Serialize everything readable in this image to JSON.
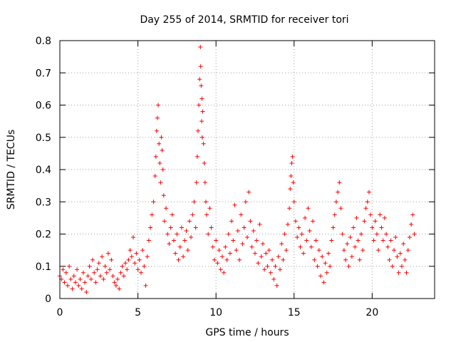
{
  "chart_data": {
    "type": "scatter",
    "title": "Day 255 of 2014, SRMTID for receiver tori",
    "xlabel": "GPS time / hours",
    "ylabel": "SRMTID / TECUs",
    "xlim": [
      0,
      24
    ],
    "ylim": [
      0,
      0.8
    ],
    "xticks": [
      0,
      5,
      10,
      15,
      20
    ],
    "yticks": [
      0,
      0.1,
      0.2,
      0.3,
      0.4,
      0.5,
      0.6,
      0.7,
      0.8
    ],
    "xtick_labels": [
      "0",
      "5",
      "10",
      "15",
      "20"
    ],
    "ytick_labels": [
      "0",
      "0.1",
      "0.2",
      "0.3",
      "0.4",
      "0.5",
      "0.6",
      "0.7",
      "0.8"
    ],
    "grid": true,
    "marker": "+",
    "color": "#ff0000",
    "series": [
      {
        "name": "SRMTID",
        "points": [
          [
            0.0,
            0.07
          ],
          [
            0.1,
            0.06
          ],
          [
            0.2,
            0.09
          ],
          [
            0.3,
            0.05
          ],
          [
            0.4,
            0.08
          ],
          [
            0.5,
            0.04
          ],
          [
            0.6,
            0.1
          ],
          [
            0.7,
            0.06
          ],
          [
            0.8,
            0.03
          ],
          [
            0.9,
            0.07
          ],
          [
            1.0,
            0.05
          ],
          [
            1.1,
            0.09
          ],
          [
            1.2,
            0.04
          ],
          [
            1.3,
            0.06
          ],
          [
            1.4,
            0.03
          ],
          [
            1.5,
            0.08
          ],
          [
            1.6,
            0.05
          ],
          [
            1.7,
            0.02
          ],
          [
            1.8,
            0.07
          ],
          [
            1.9,
            0.1
          ],
          [
            2.0,
            0.06
          ],
          [
            2.1,
            0.12
          ],
          [
            2.2,
            0.08
          ],
          [
            2.3,
            0.05
          ],
          [
            2.4,
            0.09
          ],
          [
            2.5,
            0.11
          ],
          [
            2.6,
            0.07
          ],
          [
            2.7,
            0.13
          ],
          [
            2.8,
            0.06
          ],
          [
            2.9,
            0.1
          ],
          [
            3.0,
            0.08
          ],
          [
            3.1,
            0.14
          ],
          [
            3.2,
            0.09
          ],
          [
            3.3,
            0.12
          ],
          [
            3.4,
            0.07
          ],
          [
            3.5,
            0.05
          ],
          [
            3.6,
            0.04
          ],
          [
            3.7,
            0.06
          ],
          [
            3.8,
            0.03
          ],
          [
            3.9,
            0.08
          ],
          [
            4.0,
            0.1
          ],
          [
            4.1,
            0.07
          ],
          [
            4.2,
            0.11
          ],
          [
            4.3,
            0.09
          ],
          [
            4.4,
            0.12
          ],
          [
            4.5,
            0.15
          ],
          [
            4.6,
            0.13
          ],
          [
            4.7,
            0.19
          ],
          [
            4.8,
            0.11
          ],
          [
            4.9,
            0.14
          ],
          [
            5.0,
            0.09
          ],
          [
            5.1,
            0.12
          ],
          [
            5.2,
            0.08
          ],
          [
            5.3,
            0.15
          ],
          [
            5.4,
            0.1
          ],
          [
            5.5,
            0.04
          ],
          [
            5.6,
            0.13
          ],
          [
            5.7,
            0.18
          ],
          [
            5.8,
            0.22
          ],
          [
            5.9,
            0.26
          ],
          [
            6.0,
            0.3
          ],
          [
            6.1,
            0.38
          ],
          [
            6.15,
            0.44
          ],
          [
            6.2,
            0.52
          ],
          [
            6.25,
            0.56
          ],
          [
            6.3,
            0.6
          ],
          [
            6.35,
            0.48
          ],
          [
            6.4,
            0.42
          ],
          [
            6.45,
            0.36
          ],
          [
            6.5,
            0.5
          ],
          [
            6.55,
            0.46
          ],
          [
            6.6,
            0.4
          ],
          [
            6.65,
            0.32
          ],
          [
            6.7,
            0.24
          ],
          [
            6.8,
            0.28
          ],
          [
            6.9,
            0.2
          ],
          [
            7.0,
            0.17
          ],
          [
            7.1,
            0.22
          ],
          [
            7.2,
            0.26
          ],
          [
            7.3,
            0.18
          ],
          [
            7.4,
            0.14
          ],
          [
            7.5,
            0.2
          ],
          [
            7.6,
            0.12
          ],
          [
            7.7,
            0.16
          ],
          [
            7.8,
            0.22
          ],
          [
            7.9,
            0.13
          ],
          [
            8.0,
            0.18
          ],
          [
            8.1,
            0.21
          ],
          [
            8.2,
            0.15
          ],
          [
            8.3,
            0.24
          ],
          [
            8.4,
            0.19
          ],
          [
            8.5,
            0.26
          ],
          [
            8.6,
            0.3
          ],
          [
            8.7,
            0.22
          ],
          [
            8.75,
            0.36
          ],
          [
            8.8,
            0.44
          ],
          [
            8.85,
            0.52
          ],
          [
            8.9,
            0.6
          ],
          [
            8.95,
            0.68
          ],
          [
            9.0,
            0.78
          ],
          [
            9.02,
            0.72
          ],
          [
            9.05,
            0.66
          ],
          [
            9.08,
            0.55
          ],
          [
            9.1,
            0.62
          ],
          [
            9.12,
            0.5
          ],
          [
            9.15,
            0.58
          ],
          [
            9.2,
            0.48
          ],
          [
            9.25,
            0.42
          ],
          [
            9.3,
            0.36
          ],
          [
            9.35,
            0.3
          ],
          [
            9.4,
            0.26
          ],
          [
            9.5,
            0.2
          ],
          [
            9.6,
            0.28
          ],
          [
            9.7,
            0.22
          ],
          [
            9.8,
            0.16
          ],
          [
            9.9,
            0.12
          ],
          [
            10.0,
            0.18
          ],
          [
            10.1,
            0.11
          ],
          [
            10.2,
            0.15
          ],
          [
            10.3,
            0.09
          ],
          [
            10.4,
            0.13
          ],
          [
            10.5,
            0.08
          ],
          [
            10.6,
            0.16
          ],
          [
            10.7,
            0.12
          ],
          [
            10.8,
            0.2
          ],
          [
            10.9,
            0.14
          ],
          [
            11.0,
            0.24
          ],
          [
            11.1,
            0.18
          ],
          [
            11.2,
            0.29
          ],
          [
            11.3,
            0.15
          ],
          [
            11.4,
            0.21
          ],
          [
            11.5,
            0.12
          ],
          [
            11.6,
            0.26
          ],
          [
            11.7,
            0.17
          ],
          [
            11.8,
            0.22
          ],
          [
            11.9,
            0.3
          ],
          [
            12.0,
            0.19
          ],
          [
            12.1,
            0.33
          ],
          [
            12.2,
            0.24
          ],
          [
            12.3,
            0.16
          ],
          [
            12.4,
            0.21
          ],
          [
            12.5,
            0.14
          ],
          [
            12.6,
            0.18
          ],
          [
            12.7,
            0.11
          ],
          [
            12.8,
            0.23
          ],
          [
            12.9,
            0.13
          ],
          [
            13.0,
            0.17
          ],
          [
            13.1,
            0.09
          ],
          [
            13.2,
            0.14
          ],
          [
            13.3,
            0.1
          ],
          [
            13.4,
            0.15
          ],
          [
            13.5,
            0.08
          ],
          [
            13.6,
            0.12
          ],
          [
            13.7,
            0.06
          ],
          [
            13.8,
            0.1
          ],
          [
            13.9,
            0.04
          ],
          [
            14.0,
            0.13
          ],
          [
            14.1,
            0.09
          ],
          [
            14.2,
            0.17
          ],
          [
            14.3,
            0.12
          ],
          [
            14.4,
            0.2
          ],
          [
            14.5,
            0.15
          ],
          [
            14.6,
            0.23
          ],
          [
            14.7,
            0.28
          ],
          [
            14.75,
            0.34
          ],
          [
            14.8,
            0.38
          ],
          [
            14.85,
            0.42
          ],
          [
            14.9,
            0.44
          ],
          [
            14.95,
            0.36
          ],
          [
            15.0,
            0.3
          ],
          [
            15.1,
            0.24
          ],
          [
            15.2,
            0.19
          ],
          [
            15.3,
            0.22
          ],
          [
            15.4,
            0.16
          ],
          [
            15.5,
            0.2
          ],
          [
            15.6,
            0.14
          ],
          [
            15.7,
            0.25
          ],
          [
            15.8,
            0.18
          ],
          [
            15.9,
            0.28
          ],
          [
            16.0,
            0.21
          ],
          [
            16.1,
            0.16
          ],
          [
            16.2,
            0.24
          ],
          [
            16.3,
            0.12
          ],
          [
            16.4,
            0.18
          ],
          [
            16.5,
            0.1
          ],
          [
            16.6,
            0.15
          ],
          [
            16.7,
            0.07
          ],
          [
            16.8,
            0.13
          ],
          [
            16.9,
            0.05
          ],
          [
            17.0,
            0.11
          ],
          [
            17.1,
            0.08
          ],
          [
            17.2,
            0.14
          ],
          [
            17.3,
            0.1
          ],
          [
            17.4,
            0.18
          ],
          [
            17.5,
            0.22
          ],
          [
            17.6,
            0.26
          ],
          [
            17.7,
            0.3
          ],
          [
            17.8,
            0.33
          ],
          [
            17.9,
            0.36
          ],
          [
            18.0,
            0.28
          ],
          [
            18.1,
            0.2
          ],
          [
            18.2,
            0.15
          ],
          [
            18.3,
            0.12
          ],
          [
            18.4,
            0.17
          ],
          [
            18.5,
            0.1
          ],
          [
            18.6,
            0.19
          ],
          [
            18.7,
            0.13
          ],
          [
            18.8,
            0.22
          ],
          [
            18.9,
            0.16
          ],
          [
            19.0,
            0.25
          ],
          [
            19.1,
            0.18
          ],
          [
            19.2,
            0.12
          ],
          [
            19.3,
            0.2
          ],
          [
            19.4,
            0.15
          ],
          [
            19.5,
            0.24
          ],
          [
            19.6,
            0.28
          ],
          [
            19.7,
            0.3
          ],
          [
            19.8,
            0.33
          ],
          [
            19.9,
            0.26
          ],
          [
            20.0,
            0.22
          ],
          [
            20.1,
            0.18
          ],
          [
            20.2,
            0.24
          ],
          [
            20.3,
            0.2
          ],
          [
            20.4,
            0.15
          ],
          [
            20.5,
            0.26
          ],
          [
            20.6,
            0.22
          ],
          [
            20.7,
            0.18
          ],
          [
            20.8,
            0.25
          ],
          [
            20.9,
            0.2
          ],
          [
            21.0,
            0.16
          ],
          [
            21.1,
            0.12
          ],
          [
            21.2,
            0.18
          ],
          [
            21.3,
            0.1
          ],
          [
            21.4,
            0.15
          ],
          [
            21.5,
            0.19
          ],
          [
            21.6,
            0.13
          ],
          [
            21.7,
            0.08
          ],
          [
            21.8,
            0.14
          ],
          [
            21.9,
            0.1
          ],
          [
            22.0,
            0.17
          ],
          [
            22.1,
            0.12
          ],
          [
            22.2,
            0.08
          ],
          [
            22.3,
            0.15
          ],
          [
            22.4,
            0.19
          ],
          [
            22.5,
            0.23
          ],
          [
            22.6,
            0.26
          ],
          [
            22.7,
            0.2
          ]
        ]
      }
    ]
  }
}
